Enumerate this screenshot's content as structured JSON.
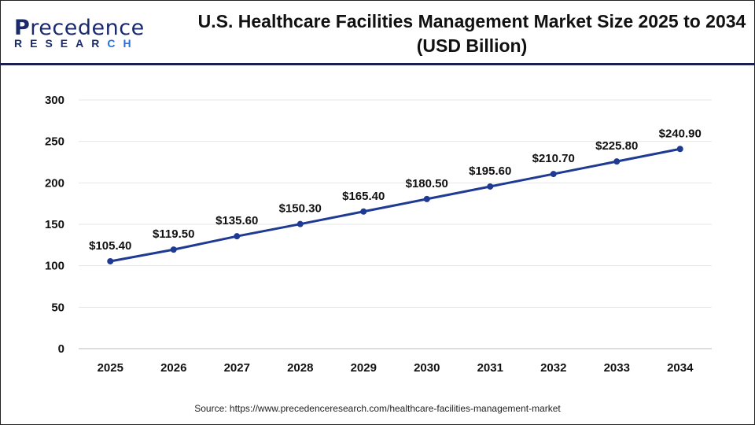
{
  "logo": {
    "brand": "Precedence",
    "sub": "RESEARCH"
  },
  "source": "Source: https://www.precedenceresearch.com/healthcare-facilities-management-market",
  "chart_data": {
    "type": "line",
    "title": "U.S. Healthcare Facilities Management Market Size 2025 to 2034 (USD Billion)",
    "categories": [
      "2025",
      "2026",
      "2027",
      "2028",
      "2029",
      "2030",
      "2031",
      "2032",
      "2033",
      "2034"
    ],
    "values": [
      105.4,
      119.5,
      135.6,
      150.3,
      165.4,
      180.5,
      195.6,
      210.7,
      225.8,
      240.9
    ],
    "data_labels": [
      "$105.40",
      "$119.50",
      "$135.60",
      "$150.30",
      "$165.40",
      "$180.50",
      "$195.60",
      "$210.70",
      "$225.80",
      "$240.90"
    ],
    "ylim": [
      0,
      300
    ],
    "yticks": [
      0,
      50,
      100,
      150,
      200,
      250,
      300
    ],
    "grid": true,
    "line_color": "#1f3a93",
    "xlabel": "",
    "ylabel": ""
  }
}
